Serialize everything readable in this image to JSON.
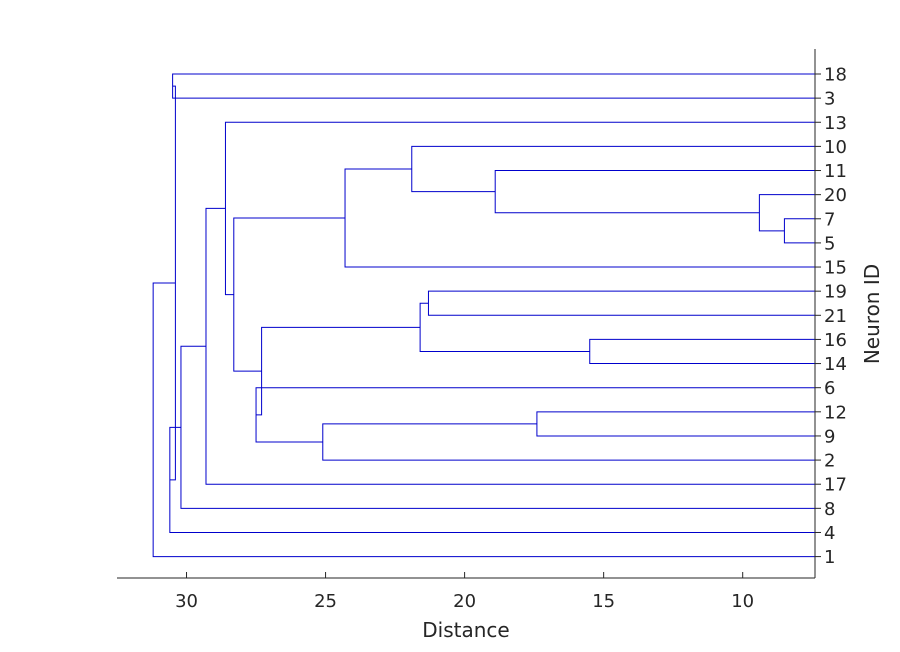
{
  "chart_data": {
    "type": "dendrogram",
    "orientation": "leaves-right",
    "xlabel": "Distance",
    "ylabel": "Neuron ID",
    "xlim": [
      32.5,
      7.4
    ],
    "x_reversed": true,
    "xticks": [
      30,
      25,
      20,
      15,
      10
    ],
    "leaf_order_top_to_bottom": [
      "18",
      "3",
      "13",
      "10",
      "11",
      "20",
      "7",
      "5",
      "15",
      "19",
      "21",
      "16",
      "14",
      "6",
      "12",
      "9",
      "2",
      "17",
      "8",
      "4",
      "1"
    ],
    "leaf_distance": 7.4,
    "merges": [
      {
        "left": "7",
        "right": "5",
        "distance": 8.5
      },
      {
        "left": "20",
        "right": "7+5",
        "distance": 9.4
      },
      {
        "left": "11",
        "right": "20+7+5",
        "distance": 18.9
      },
      {
        "left": "10",
        "right": "11+20+7+5",
        "distance": 21.9
      },
      {
        "left": "10-cluster",
        "right": "15",
        "distance": 24.3
      },
      {
        "left": "19",
        "right": "21",
        "distance": 21.3
      },
      {
        "left": "16",
        "right": "14",
        "distance": 15.5
      },
      {
        "left": "19+21",
        "right": "16+14",
        "distance": 21.6
      },
      {
        "left": "12",
        "right": "9",
        "distance": 17.4
      },
      {
        "left": "12+9",
        "right": "2",
        "distance": 25.1
      },
      {
        "left": "6",
        "right": "12+9+2",
        "distance": 27.5
      },
      {
        "left": "19-cluster",
        "right": "6-cluster",
        "distance": 27.3
      },
      {
        "left": "10-cluster",
        "right": "19+6-clusters",
        "distance": 28.3
      },
      {
        "left": "13",
        "right": "28.3-cluster",
        "distance": 28.6
      },
      {
        "left": "13-cluster",
        "right": "17",
        "distance": 29.3
      },
      {
        "left": "29.3-cluster",
        "right": "8",
        "distance": 30.2
      },
      {
        "left": "18",
        "right": "3",
        "distance": 30.5
      },
      {
        "left": "30.2-cluster",
        "right": "4",
        "distance": 30.6
      },
      {
        "left": "18+3",
        "right": "30.6-cluster",
        "distance": 30.4
      },
      {
        "left": "30.4-cluster",
        "right": "1",
        "distance": 31.2
      }
    ],
    "line_color": "#0000cc",
    "grid": false
  }
}
